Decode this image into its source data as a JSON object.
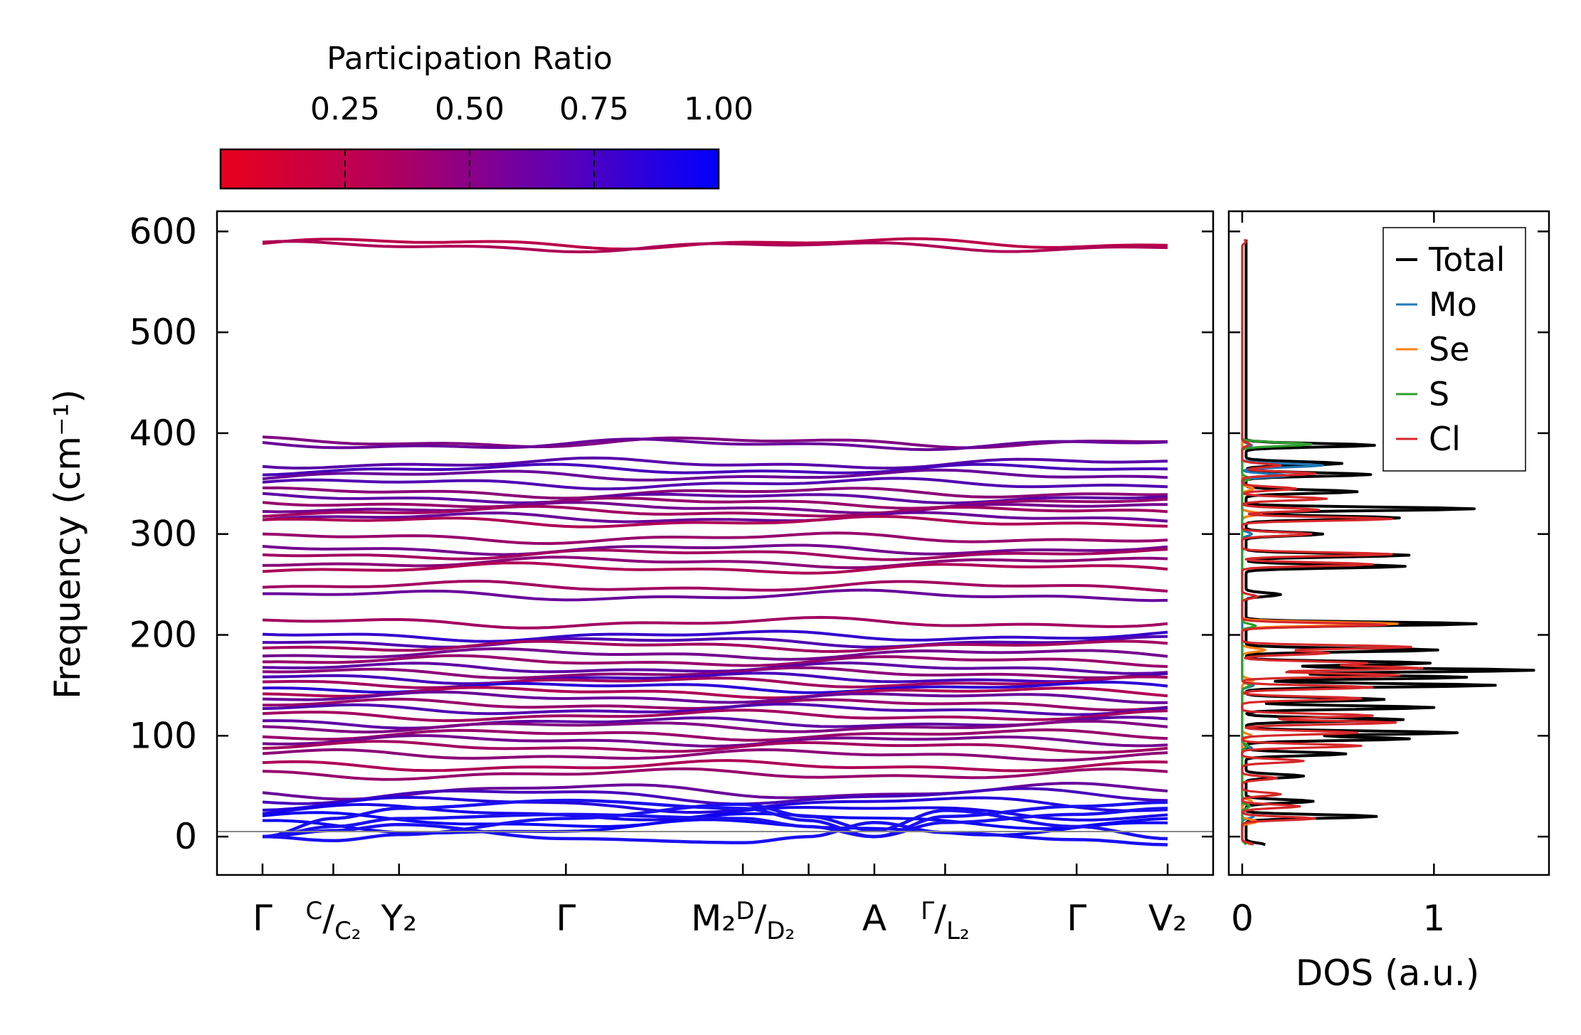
{
  "chart_data": [
    {
      "type": "line",
      "title": "",
      "xlabel": "",
      "ylabel": "Frequency (cm⁻¹)",
      "ylim": [
        -38,
        620
      ],
      "yticks": [
        0,
        100,
        200,
        300,
        400,
        500,
        600
      ],
      "ytick_labels": [
        "0",
        "100",
        "200",
        "300",
        "400",
        "500",
        "600"
      ],
      "kpath_x": [
        0.0,
        0.7,
        1.35,
        3.0,
        4.75,
        5.4,
        6.05,
        6.75,
        8.05,
        8.95
      ],
      "kpath_x_range": [
        -0.45,
        9.4
      ],
      "kpath_labels": [
        {
          "x": 0.0,
          "main": "Γ",
          "sup": "",
          "sub": ""
        },
        {
          "x": 0.7,
          "main": "",
          "sup": "C",
          "sub": "C₂"
        },
        {
          "x": 1.35,
          "main": "Y₂",
          "sup": "",
          "sub": ""
        },
        {
          "x": 3.0,
          "main": "Γ",
          "sup": "",
          "sub": ""
        },
        {
          "x": 4.75,
          "main": "M₂",
          "sup": "D",
          "sub": "D₂"
        },
        {
          "x": 6.05,
          "main": "A",
          "sup": "",
          "sub": ""
        },
        {
          "x": 6.75,
          "main": "",
          "sup": "Γ",
          "sub": "L₂"
        },
        {
          "x": 8.05,
          "main": "Γ",
          "sup": "",
          "sub": ""
        },
        {
          "x": 8.95,
          "main": "V₂",
          "sup": "",
          "sub": ""
        }
      ],
      "color_encoding": "Participation Ratio",
      "band_frequencies": [
        588,
        585,
        391,
        389,
        370,
        364,
        358,
        350,
        341,
        336,
        331,
        326,
        322,
        316,
        312,
        296,
        285,
        280,
        272,
        266,
        248,
        239,
        212,
        199,
        193,
        189,
        181,
        174,
        167,
        162,
        157,
        153,
        148,
        143,
        138,
        131,
        126,
        120,
        113,
        109,
        101,
        95,
        89,
        81,
        70,
        62,
        45,
        40,
        32,
        24,
        16,
        9
      ],
      "band_participation": [
        0.2,
        0.25,
        0.45,
        0.55,
        0.62,
        0.7,
        0.55,
        0.65,
        0.4,
        0.6,
        0.35,
        0.5,
        0.3,
        0.55,
        0.25,
        0.35,
        0.5,
        0.3,
        0.4,
        0.25,
        0.3,
        0.55,
        0.3,
        0.78,
        0.65,
        0.3,
        0.5,
        0.35,
        0.6,
        0.4,
        0.7,
        0.3,
        0.82,
        0.25,
        0.55,
        0.35,
        0.65,
        0.3,
        0.6,
        0.45,
        0.35,
        0.5,
        0.3,
        0.4,
        0.25,
        0.35,
        0.55,
        0.7,
        0.85,
        0.9,
        0.95,
        0.95
      ],
      "acoustic_branches": [
        [
          0,
          10,
          18,
          22,
          18,
          10,
          0,
          14,
          22,
          28,
          0
        ],
        [
          0,
          18,
          28,
          36,
          28,
          16,
          0,
          20,
          30,
          34,
          0
        ],
        [
          0,
          -4,
          2,
          18,
          32,
          20,
          6,
          26,
          10,
          -2,
          0
        ],
        [
          0,
          6,
          12,
          -2,
          -6,
          0,
          14,
          4,
          -3,
          -8,
          0
        ]
      ]
    },
    {
      "type": "line",
      "title": "",
      "xlabel": "DOS (a.u.)",
      "ylabel": "",
      "xlim": [
        -0.07,
        1.6
      ],
      "ylim": [
        -38,
        620
      ],
      "xticks": [
        0,
        1
      ],
      "xtick_labels": [
        "0",
        "1"
      ],
      "legend_position": "top-right",
      "series": [
        {
          "name": "Total",
          "color": "#000000",
          "peaks": [
            [
              -8,
              0.1
            ],
            [
              20,
              0.68
            ],
            [
              35,
              0.35
            ],
            [
              60,
              0.3
            ],
            [
              82,
              0.52
            ],
            [
              97,
              0.85
            ],
            [
              103,
              1.1
            ],
            [
              116,
              0.82
            ],
            [
              128,
              0.98
            ],
            [
              136,
              0.72
            ],
            [
              150,
              1.3
            ],
            [
              158,
              1.15
            ],
            [
              165,
              1.5
            ],
            [
              172,
              0.96
            ],
            [
              185,
              1.0
            ],
            [
              211,
              1.2
            ],
            [
              240,
              0.18
            ],
            [
              268,
              0.83
            ],
            [
              279,
              0.85
            ],
            [
              300,
              0.4
            ],
            [
              316,
              0.8
            ],
            [
              325,
              1.19
            ],
            [
              342,
              0.58
            ],
            [
              359,
              0.65
            ],
            [
              370,
              0.5
            ],
            [
              388,
              0.67
            ]
          ]
        },
        {
          "name": "Mo",
          "color": "#1f77b4",
          "peaks": [
            [
              -8,
              0.05
            ],
            [
              20,
              0.06
            ],
            [
              88,
              0.05
            ],
            [
              150,
              0.06
            ],
            [
              300,
              0.05
            ],
            [
              320,
              0.09
            ],
            [
              358,
              0.24
            ],
            [
              368,
              0.42
            ],
            [
              388,
              0.05
            ]
          ]
        },
        {
          "name": "Se",
          "color": "#ff7f0e",
          "peaks": [
            [
              -8,
              0.04
            ],
            [
              15,
              0.08
            ],
            [
              35,
              0.05
            ],
            [
              100,
              0.05
            ],
            [
              155,
              0.06
            ],
            [
              185,
              0.12
            ],
            [
              211,
              0.81
            ],
            [
              320,
              0.1
            ],
            [
              345,
              0.06
            ]
          ]
        },
        {
          "name": "S",
          "color": "#2ca02c",
          "peaks": [
            [
              -8,
              0.02
            ],
            [
              30,
              0.04
            ],
            [
              90,
              0.03
            ],
            [
              150,
              0.04
            ],
            [
              209,
              0.07
            ],
            [
              355,
              0.04
            ],
            [
              389,
              0.36
            ]
          ]
        },
        {
          "name": "Cl",
          "color": "#d62728",
          "peaks": [
            [
              -8,
              0.06
            ],
            [
              18,
              0.38
            ],
            [
              30,
              0.3
            ],
            [
              42,
              0.2
            ],
            [
              58,
              0.18
            ],
            [
              75,
              0.32
            ],
            [
              90,
              0.62
            ],
            [
              103,
              0.6
            ],
            [
              113,
              0.8
            ],
            [
              120,
              0.68
            ],
            [
              137,
              0.62
            ],
            [
              148,
              0.68
            ],
            [
              160,
              0.82
            ],
            [
              167,
              0.93
            ],
            [
              172,
              0.64
            ],
            [
              182,
              0.45
            ],
            [
              188,
              0.88
            ],
            [
              210,
              0.75
            ],
            [
              238,
              0.08
            ],
            [
              270,
              0.68
            ],
            [
              280,
              0.78
            ],
            [
              300,
              0.36
            ],
            [
              315,
              0.78
            ],
            [
              324,
              0.4
            ],
            [
              335,
              0.44
            ],
            [
              345,
              0.28
            ],
            [
              360,
              0.38
            ],
            [
              368,
              0.2
            ],
            [
              389,
              0.04
            ],
            [
              590,
              0.02
            ]
          ]
        }
      ]
    }
  ],
  "colorbar": {
    "label": "Participation Ratio",
    "min": 0.0,
    "max": 1.0,
    "ticks": [
      "0.25",
      "0.50",
      "0.75",
      "1.00"
    ],
    "tick_values": [
      0.25,
      0.5,
      0.75,
      1.0
    ],
    "color_low": "#e8001c",
    "color_high": "#0000ff"
  }
}
